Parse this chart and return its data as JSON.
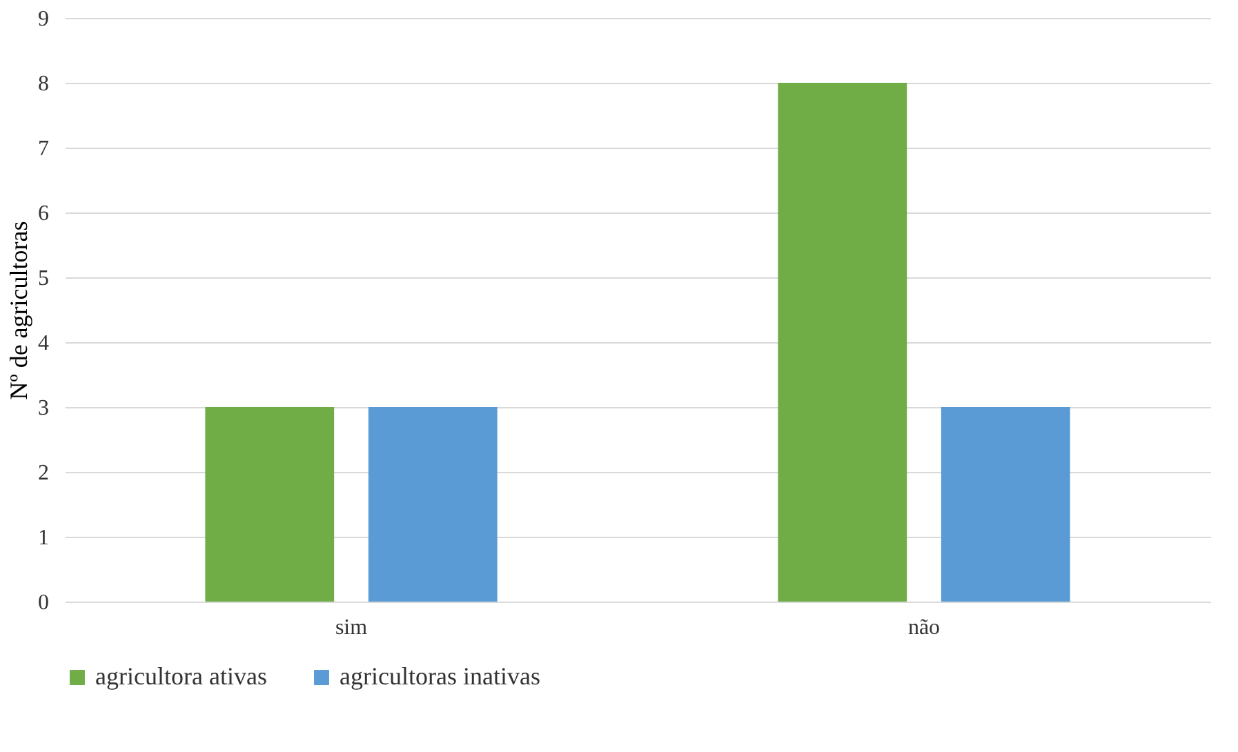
{
  "chart_data": {
    "type": "bar",
    "ylabel": "Nº de agricultoras",
    "categories": [
      "sim",
      "não"
    ],
    "series": [
      {
        "name": "agricultora ativas",
        "color": "#70ad47",
        "values": [
          3,
          8
        ]
      },
      {
        "name": "agricultoras inativas",
        "color": "#5b9bd5",
        "values": [
          3,
          3
        ]
      }
    ],
    "ylim": [
      0,
      9
    ],
    "yticks": [
      0,
      1,
      2,
      3,
      4,
      5,
      6,
      7,
      8,
      9
    ],
    "grid": "y",
    "legend": "bottom"
  }
}
